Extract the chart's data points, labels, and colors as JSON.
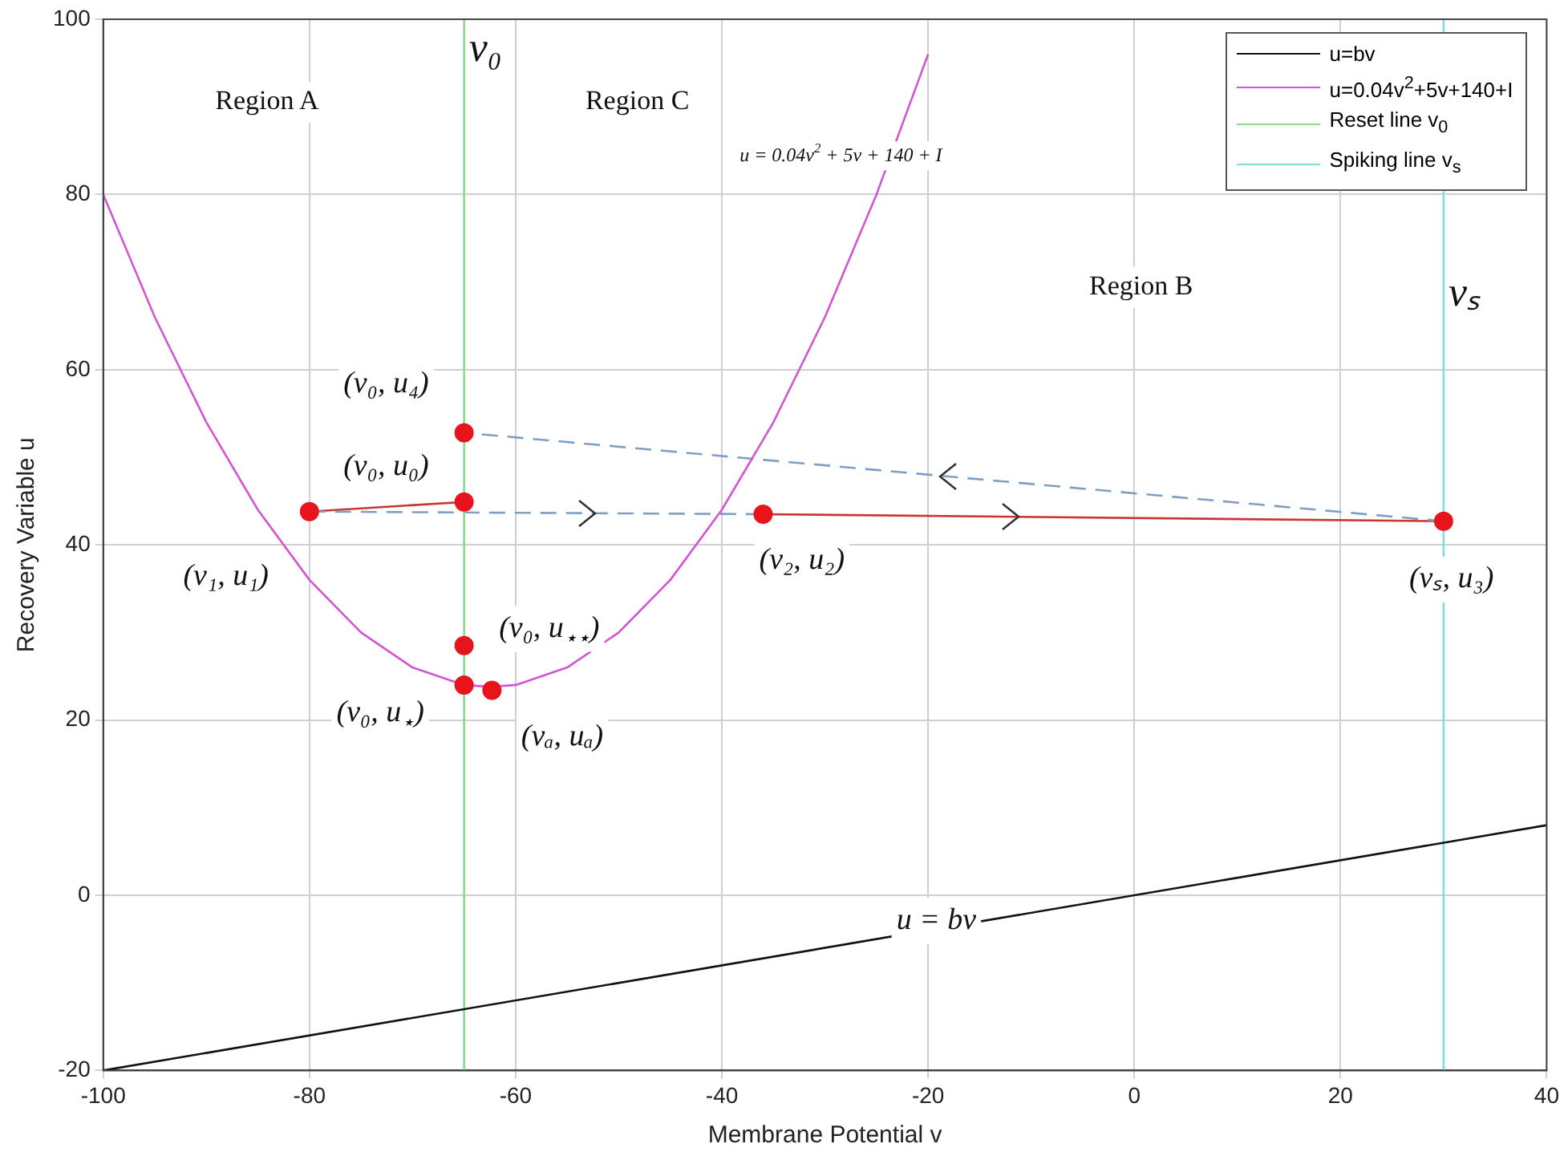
{
  "chart_data": {
    "type": "line",
    "xlabel": "Membrane Potential v",
    "ylabel": "Recovery Variable u",
    "xlim": [
      -100,
      40
    ],
    "xticks": [
      -100,
      -80,
      -60,
      -40,
      -20,
      0,
      20,
      40
    ],
    "ylim": [
      -20,
      100
    ],
    "yticks": [
      -20,
      0,
      20,
      40,
      60,
      80,
      100
    ],
    "grid": true,
    "legend": "top right",
    "marker": "none",
    "line_style": "solid",
    "series": [
      {
        "name": "u=bv",
        "color": "#111111",
        "x": [
          -100,
          40
        ],
        "values": [
          -20,
          8
        ]
      },
      {
        "name": "u=0.04v$^{2}$+5v+140+I",
        "color": "#d355d3",
        "x": [
          -100,
          -95,
          -90,
          -85,
          -80,
          -75,
          -70,
          -65,
          -62.5,
          -60,
          -55,
          -50,
          -45,
          -40,
          -35,
          -30,
          -25,
          -20
        ],
        "values": [
          80,
          66,
          54,
          44,
          36,
          30,
          26,
          24,
          23.8,
          24,
          26,
          30,
          36,
          44,
          54,
          66,
          80,
          96
        ]
      },
      {
        "name": "Reset line v$_{0}$",
        "color": "#8cd98c",
        "x": [
          -65,
          -65
        ],
        "values": [
          -20,
          100
        ]
      },
      {
        "name": "Spiking line v$_{s}$",
        "color": "#80dcdc",
        "x": [
          30,
          30
        ],
        "values": [
          -20,
          100
        ]
      },
      {
        "color": "#7f9fc2",
        "line_style": "dashed",
        "x": [
          -80,
          -36
        ],
        "values": [
          43.8,
          43.5
        ]
      },
      {
        "color": "#7f9fc2",
        "line_style": "dashed",
        "x": [
          30,
          -65
        ],
        "values": [
          42.7,
          52.8
        ]
      },
      {
        "color": "#cc3333",
        "x": [
          -80,
          -65
        ],
        "values": [
          43.8,
          44.9
        ]
      },
      {
        "color": "#cc3333",
        "x": [
          -36,
          30
        ],
        "values": [
          43.5,
          42.7
        ]
      },
      {
        "type": "scatter",
        "marker": "circle",
        "color": "#e8141b",
        "x": [
          -80,
          -65,
          -65,
          -65,
          -65,
          -62.3,
          -36,
          30
        ],
        "values": [
          43.8,
          44.9,
          52.8,
          28.5,
          24.0,
          23.4,
          43.5,
          42.7
        ]
      }
    ],
    "annotations": [
      "(v₁, u₁)",
      "(v₀, u₀)",
      "(v₀, u₄)",
      "(v₀, u$_{⋆⋆}$)",
      "(v₀, u$_{⋆}$)",
      "(vₐ, uₐ)",
      "(v₂, u₂)",
      "(vₛ, u₃)",
      "Region A",
      "Region C",
      "Region B",
      "u = 0.04v$^{2}$ + 5v + 140 + I",
      {
        "text": "v₀",
        "x": -65,
        "y": 96.5
      },
      {
        "text": "vₛ",
        "x": 30,
        "y": 68.6
      },
      {
        "text": "u = bv",
        "x": -19.2,
        "y": -2.9
      }
    ]
  }
}
